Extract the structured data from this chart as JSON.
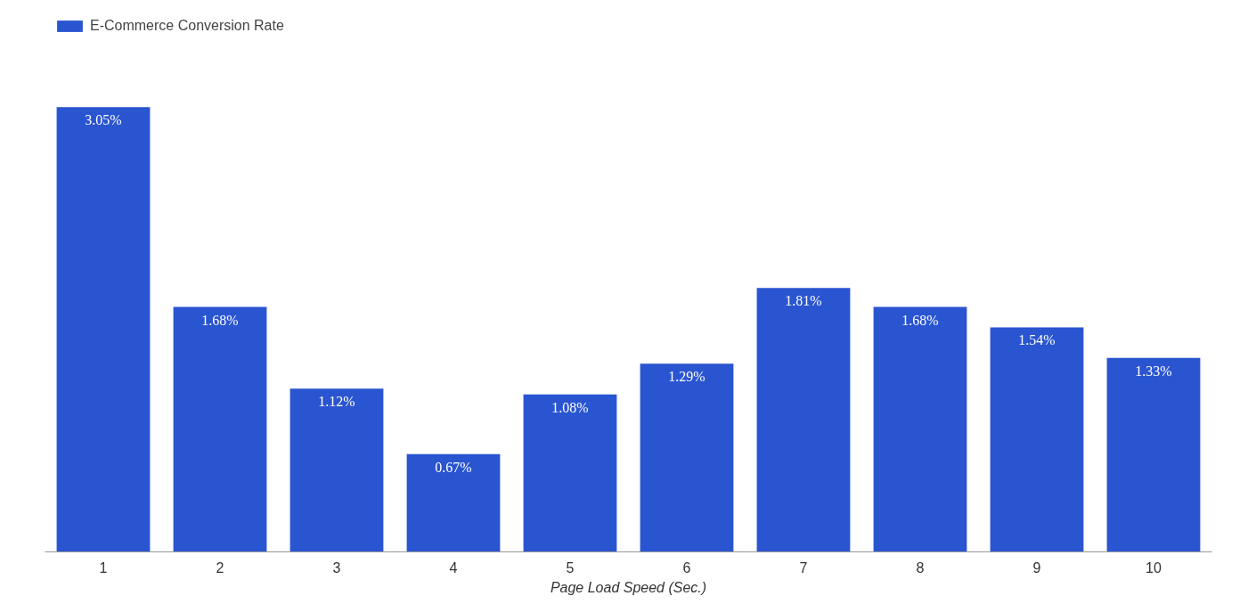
{
  "chart_data": {
    "type": "bar",
    "xlabel": "Page Load Speed (Sec.)",
    "categories": [
      "1",
      "2",
      "3",
      "4",
      "5",
      "6",
      "7",
      "8",
      "9",
      "10"
    ],
    "series": [
      {
        "name": "E-Commerce Conversion Rate",
        "color": "#2a55d1",
        "values": [
          3.05,
          1.68,
          1.12,
          0.67,
          1.08,
          1.29,
          1.81,
          1.68,
          1.54,
          1.33
        ],
        "value_labels": [
          "3.05%",
          "1.68%",
          "1.12%",
          "0.67%",
          "1.08%",
          "1.29%",
          "1.81%",
          "1.68%",
          "1.54%",
          "1.33%"
        ]
      }
    ],
    "grid": false,
    "legend": "top left"
  }
}
